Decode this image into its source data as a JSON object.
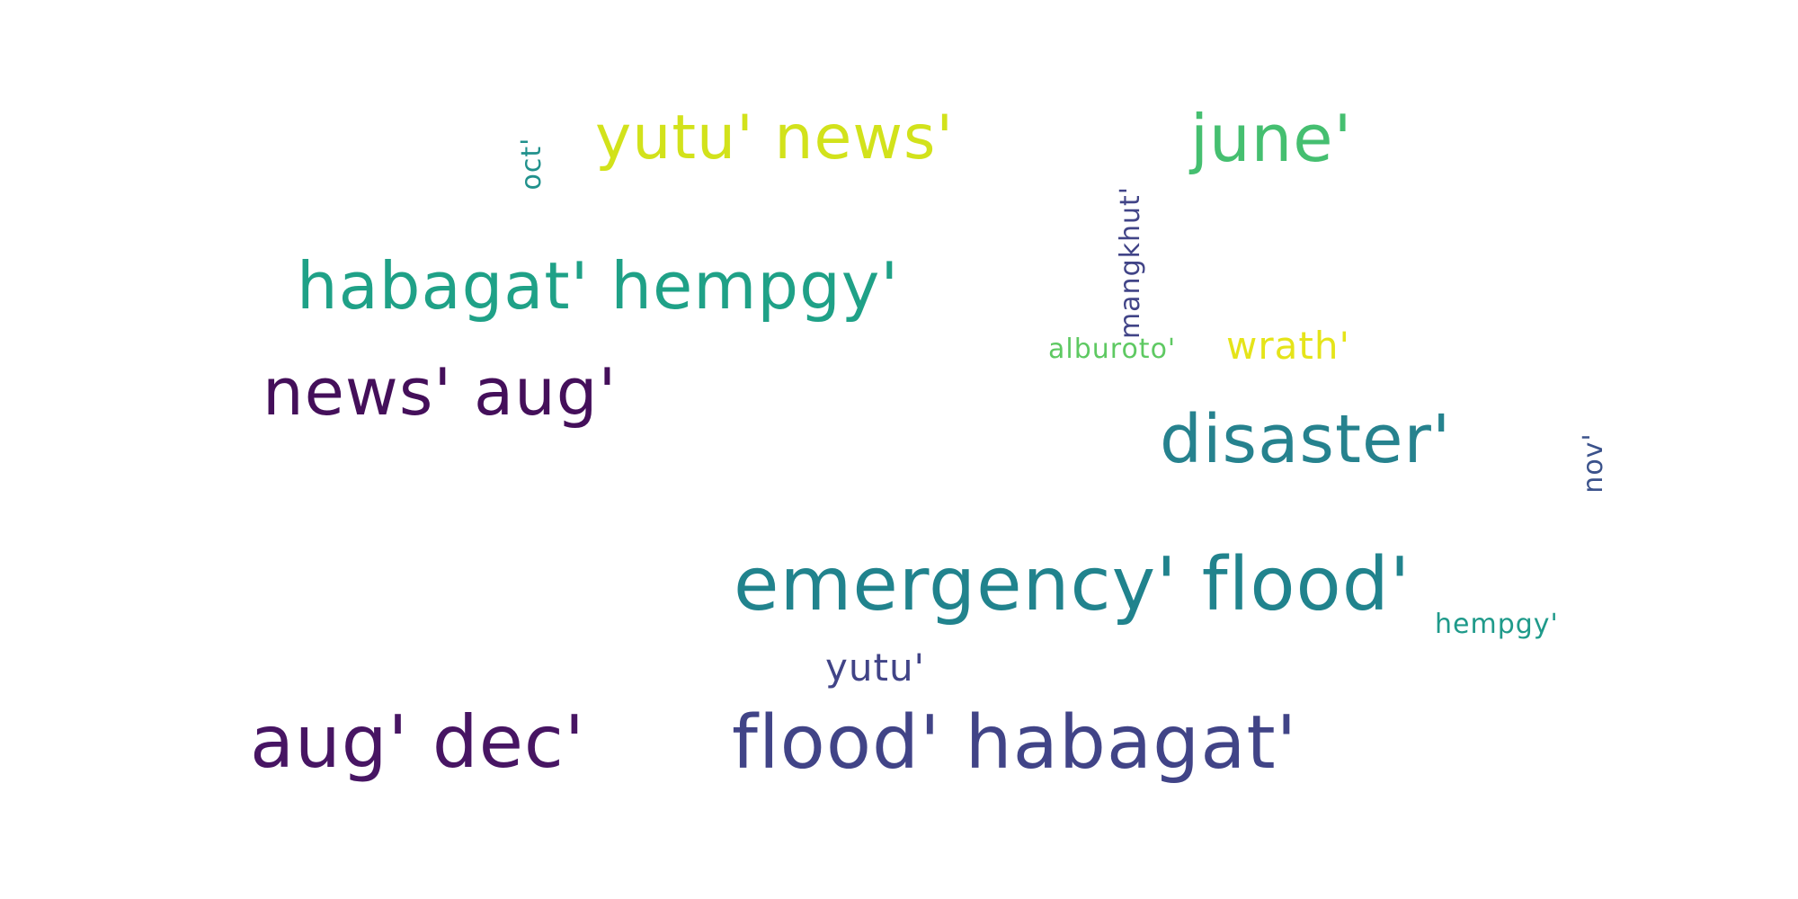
{
  "wordcloud": {
    "words": [
      {
        "id": "yutu_news",
        "text": "yutu' news'",
        "color": "#d2e21b"
      },
      {
        "id": "june",
        "text": "june'",
        "color": "#45bf70"
      },
      {
        "id": "oct",
        "text": "oct'",
        "color": "#21918c"
      },
      {
        "id": "habagat_hempgy",
        "text": "habagat' hempgy'",
        "color": "#1fa187"
      },
      {
        "id": "mangkhut",
        "text": "mangkhut'",
        "color": "#414487"
      },
      {
        "id": "alburoto",
        "text": "alburoto'",
        "color": "#5ec962"
      },
      {
        "id": "wrath",
        "text": "wrath'",
        "color": "#e5e419"
      },
      {
        "id": "news_aug",
        "text": "news' aug'",
        "color": "#440f5a"
      },
      {
        "id": "disaster",
        "text": "disaster'",
        "color": "#26828e"
      },
      {
        "id": "nov",
        "text": "nov'",
        "color": "#3b528b"
      },
      {
        "id": "emergency_flood",
        "text": "emergency' flood'",
        "color": "#21838d"
      },
      {
        "id": "hempgy",
        "text": "hempgy'",
        "color": "#1f9a8a"
      },
      {
        "id": "yutu",
        "text": "yutu'",
        "color": "#414487"
      },
      {
        "id": "aug_dec",
        "text": "aug' dec'",
        "color": "#471563"
      },
      {
        "id": "flood_habagat",
        "text": "flood' habagat'",
        "color": "#414487"
      }
    ]
  }
}
